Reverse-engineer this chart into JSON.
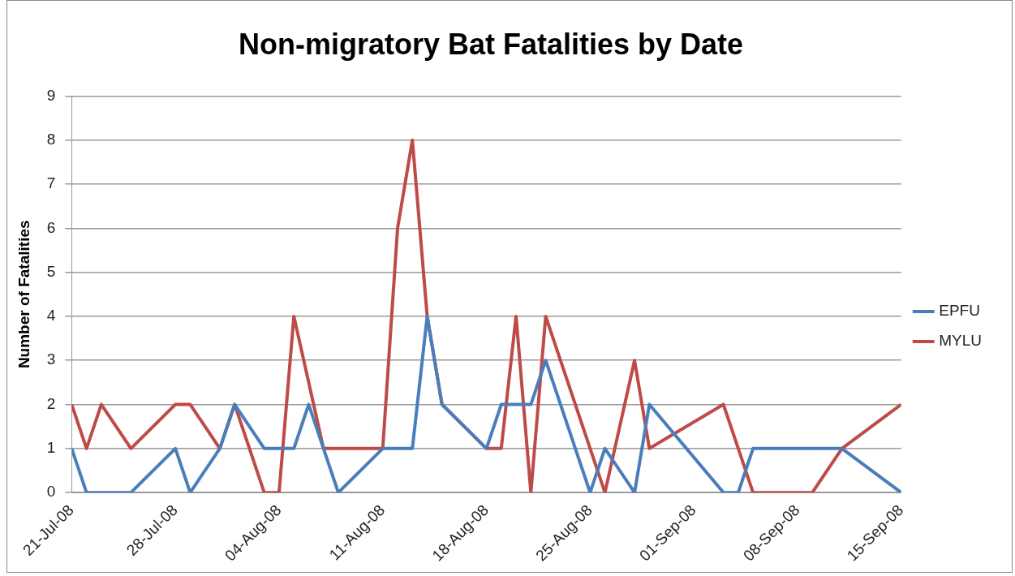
{
  "chart_data": {
    "type": "line",
    "title": "Non-migratory Bat Fatalities by Date",
    "ylabel": "Number of Fatalities",
    "xlim": [
      "--07-21",
      "--09-15"
    ],
    "xticks": [
      {
        "value": "--07-21",
        "label": "21-Jul-08"
      },
      {
        "value": "--07-28",
        "label": "28-Jul-08"
      },
      {
        "value": "--08-04",
        "label": "04-Aug-08"
      },
      {
        "value": "--08-11",
        "label": "11-Aug-08"
      },
      {
        "value": "--08-18",
        "label": "18-Aug-08"
      },
      {
        "value": "--08-25",
        "label": "25-Aug-08"
      },
      {
        "value": "--09-01",
        "label": "01-Sep-08"
      },
      {
        "value": "--09-08",
        "label": "08-Sep-08"
      },
      {
        "value": "--09-15",
        "label": "15-Sep-08"
      }
    ],
    "ylim": [
      0,
      9
    ],
    "yticks": [
      0,
      1,
      2,
      3,
      4,
      5,
      6,
      7,
      8,
      9
    ],
    "grid": "y",
    "legend": "right",
    "marker": "none",
    "line_style": "solid",
    "series": [
      {
        "name": "EPFU",
        "color": "#4a7ebb",
        "x": [
          "--07-21",
          "--07-22",
          "--07-25",
          "--07-28",
          "--07-29",
          "--07-31",
          "--08-01",
          "--08-03",
          "--08-05",
          "--08-06",
          "--08-08",
          "--08-11",
          "--08-13",
          "--08-14",
          "--08-15",
          "--08-18",
          "--08-19",
          "--08-21",
          "--08-22",
          "--08-25",
          "--08-26",
          "--08-28",
          "--08-29",
          "--09-03",
          "--09-04",
          "--09-05",
          "--09-11",
          "--09-15"
        ],
        "values": [
          1,
          0,
          0,
          1,
          0,
          1,
          2,
          1,
          1,
          2,
          0,
          1,
          1,
          4,
          2,
          1,
          2,
          2,
          3,
          0,
          1,
          0,
          2,
          0,
          0,
          1,
          1,
          0
        ]
      },
      {
        "name": "MYLU",
        "color": "#be4b48",
        "x": [
          "--07-21",
          "--07-22",
          "--07-23",
          "--07-25",
          "--07-28",
          "--07-29",
          "--07-31",
          "--08-01",
          "--08-03",
          "--08-04",
          "--08-05",
          "--08-07",
          "--08-11",
          "--08-12",
          "--08-13",
          "--08-14",
          "--08-15",
          "--08-18",
          "--08-19",
          "--08-20",
          "--08-21",
          "--08-22",
          "--08-26",
          "--08-28",
          "--08-29",
          "--09-03",
          "--09-05",
          "--09-09",
          "--09-11",
          "--09-15"
        ],
        "values": [
          2,
          1,
          2,
          1,
          2,
          2,
          1,
          2,
          0,
          0,
          4,
          1,
          1,
          6,
          8,
          4,
          2,
          1,
          1,
          4,
          0,
          4,
          0,
          3,
          1,
          2,
          0,
          0,
          1,
          2
        ]
      }
    ]
  }
}
